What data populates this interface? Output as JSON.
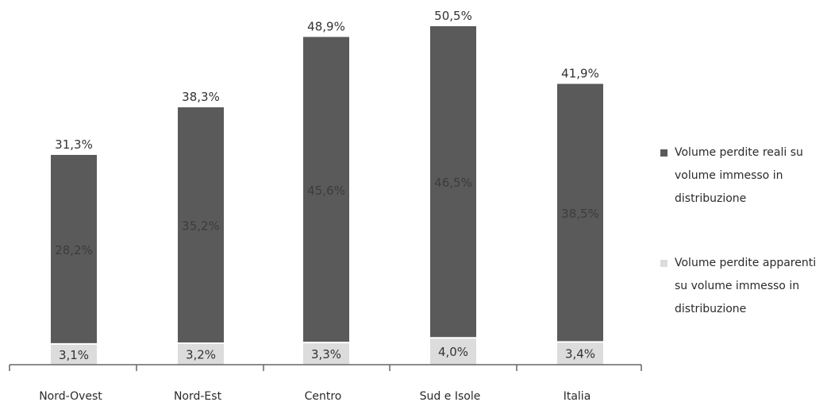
{
  "chart_data": {
    "type": "bar",
    "stacked": true,
    "categories": [
      "Nord-Ovest",
      "Nord-Est",
      "Centro",
      "Sud e Isole",
      "Italia"
    ],
    "series": [
      {
        "name": "Volume perdite apparenti su volume immesso in distribuzione",
        "values": [
          3.1,
          3.2,
          3.3,
          4.0,
          3.4
        ],
        "labels": [
          "3,1%",
          "3,2%",
          "3,3%",
          "4,0%",
          "3,4%"
        ],
        "color": "#dcdcdc"
      },
      {
        "name": "Volume perdite reali su volume immesso in distribuzione",
        "values": [
          28.2,
          35.2,
          45.6,
          46.5,
          38.5
        ],
        "labels": [
          "28,2%",
          "35,2%",
          "45,6%",
          "46,5%",
          "38,5%"
        ],
        "color": "#5a5a5a"
      }
    ],
    "totals": [
      31.3,
      38.3,
      48.9,
      50.5,
      41.9
    ],
    "total_labels": [
      "31,3%",
      "38,3%",
      "48,9%",
      "50,5%",
      "41,9%"
    ],
    "ylim": [
      0,
      50.5
    ],
    "legend_position": "right",
    "grid": false
  },
  "legend": [
    {
      "label_lines": [
        "Volume perdite reali su",
        "volume immesso in",
        "distribuzione"
      ],
      "color": "#5a5a5a"
    },
    {
      "label_lines": [
        "Volume perdite apparenti",
        "su volume immesso in",
        "distribuzione"
      ],
      "color": "#dcdcdc"
    }
  ]
}
